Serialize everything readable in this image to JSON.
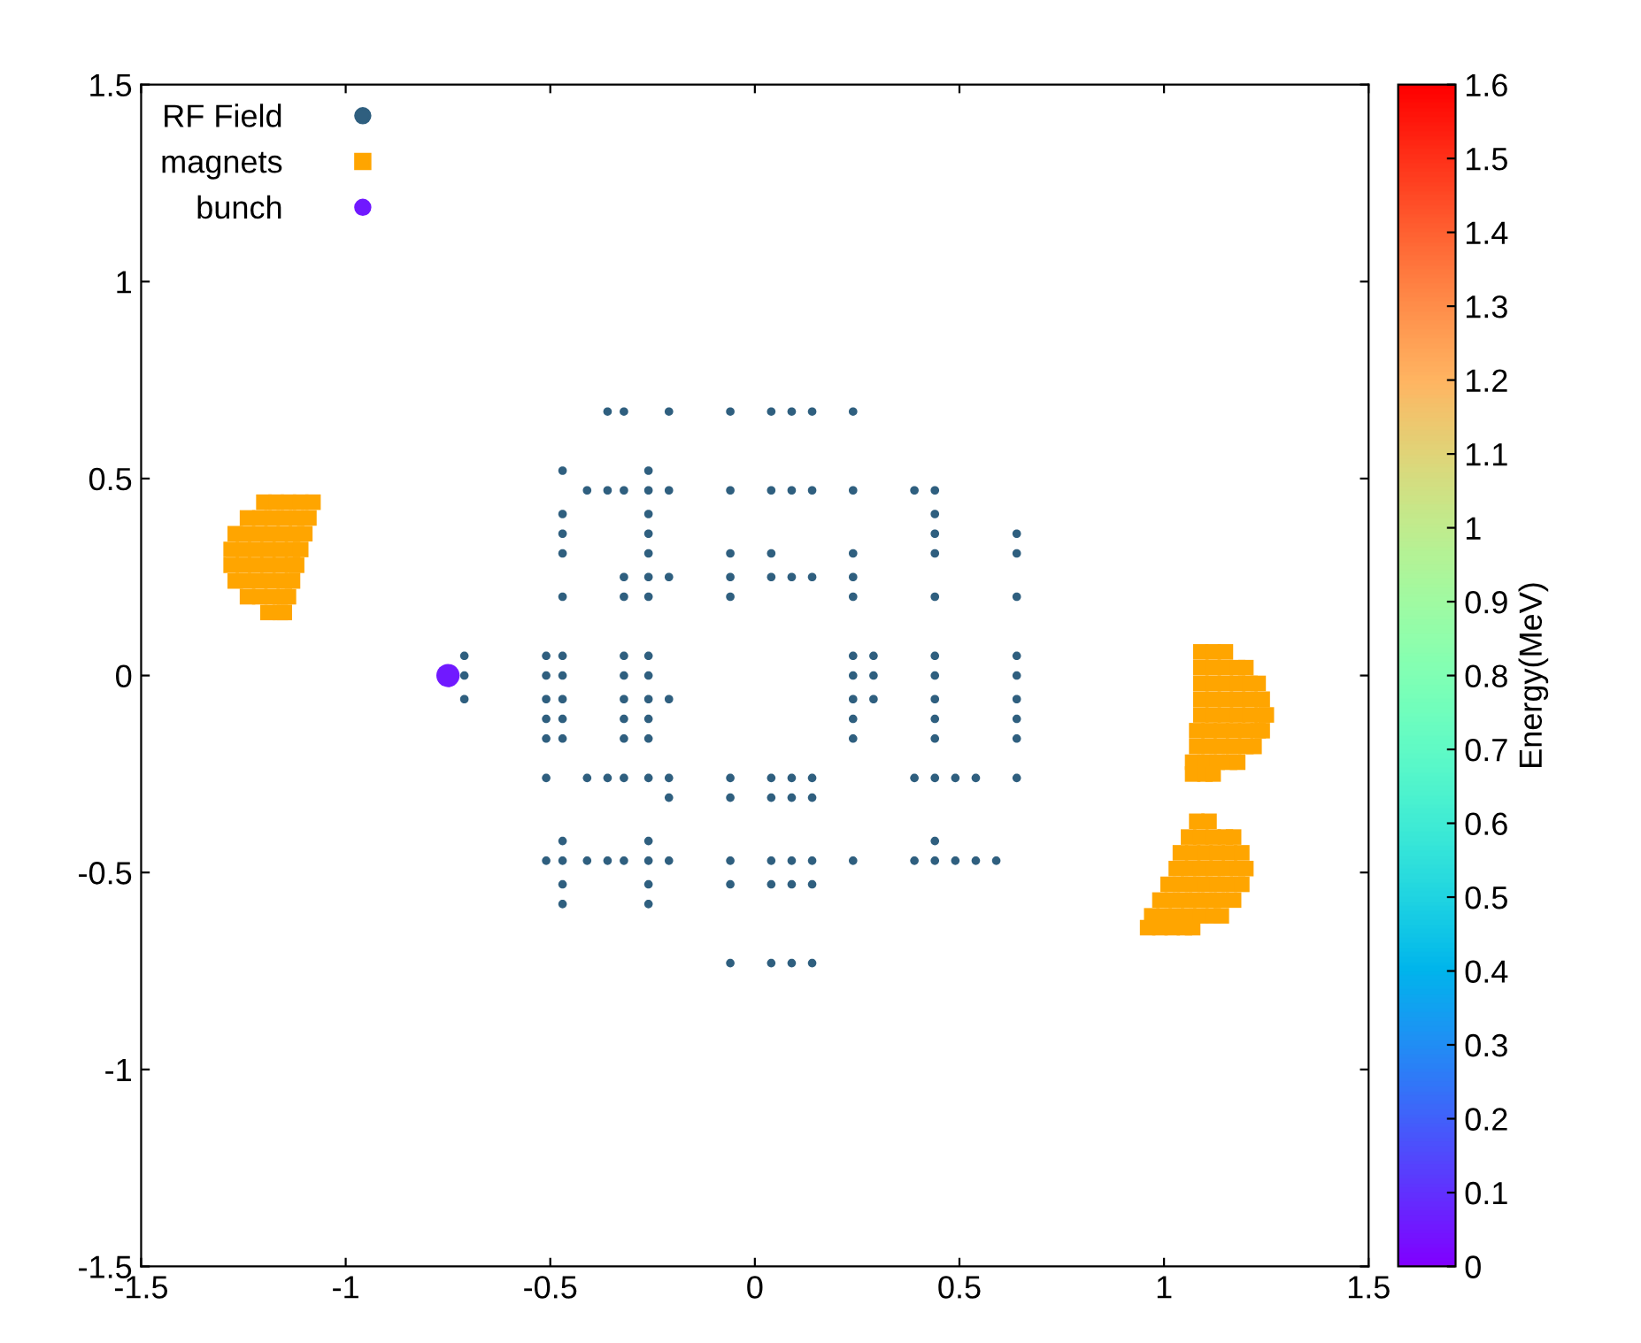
{
  "chart_data": {
    "type": "scatter",
    "xlim": [
      -1.5,
      1.5
    ],
    "ylim": [
      -1.5,
      1.5
    ],
    "xticks": [
      -1.5,
      -1,
      -0.5,
      0,
      0.5,
      1,
      1.5
    ],
    "yticks": [
      -1.5,
      -1,
      -0.5,
      0,
      0.5,
      1,
      1.5
    ],
    "clim": [
      0,
      1.6
    ],
    "cticks": [
      0,
      0.1,
      0.2,
      0.3,
      0.4,
      0.5,
      0.6,
      0.7,
      0.8,
      0.9,
      1,
      1.1,
      1.2,
      1.3,
      1.4,
      1.5,
      1.6
    ],
    "clabel": "Energy(MeV)",
    "legend": "top left",
    "grid": false,
    "series": [
      {
        "name": "RF Field",
        "marker": "circle",
        "color": "#2f5f7f",
        "x": [
          -0.36,
          -0.32,
          -0.21,
          -0.06,
          0.04,
          0.09,
          0.14,
          0.24,
          -0.47,
          -0.26,
          -0.41,
          -0.36,
          -0.32,
          -0.26,
          -0.21,
          -0.06,
          0.04,
          0.09,
          0.14,
          0.24,
          0.39,
          0.44,
          -0.47,
          -0.26,
          0.44,
          -0.47,
          -0.26,
          0.44,
          0.64,
          -0.47,
          -0.26,
          -0.06,
          0.04,
          0.24,
          0.44,
          0.64,
          -0.32,
          -0.26,
          -0.21,
          -0.06,
          0.04,
          0.09,
          0.14,
          0.24,
          -0.47,
          -0.32,
          -0.26,
          -0.06,
          0.24,
          0.44,
          0.64,
          -0.71,
          -0.51,
          -0.47,
          -0.32,
          -0.26,
          0.24,
          0.29,
          0.44,
          0.64,
          -0.71,
          -0.51,
          -0.47,
          -0.32,
          -0.26,
          0.24,
          0.29,
          0.44,
          0.64,
          -0.71,
          -0.51,
          -0.47,
          -0.32,
          -0.26,
          -0.21,
          0.24,
          0.29,
          0.44,
          0.64,
          -0.51,
          -0.47,
          -0.32,
          -0.26,
          0.24,
          0.44,
          0.64,
          -0.51,
          -0.47,
          -0.32,
          -0.26,
          0.24,
          0.44,
          0.64,
          -0.51,
          -0.41,
          -0.36,
          -0.32,
          -0.26,
          -0.21,
          -0.06,
          0.04,
          0.09,
          0.14,
          0.39,
          0.44,
          0.49,
          0.54,
          0.64,
          -0.21,
          -0.06,
          0.04,
          0.09,
          0.14,
          -0.47,
          -0.26,
          0.44,
          -0.51,
          -0.47,
          -0.41,
          -0.36,
          -0.32,
          -0.26,
          -0.21,
          -0.06,
          0.04,
          0.09,
          0.14,
          0.24,
          0.39,
          0.44,
          0.49,
          0.54,
          0.59,
          -0.47,
          -0.26,
          -0.06,
          0.04,
          0.09,
          0.14,
          -0.47,
          -0.26,
          -0.06,
          0.04,
          0.09,
          0.14
        ],
        "values": [
          0.67,
          0.67,
          0.67,
          0.67,
          0.67,
          0.67,
          0.67,
          0.67,
          0.52,
          0.52,
          0.47,
          0.47,
          0.47,
          0.47,
          0.47,
          0.47,
          0.47,
          0.47,
          0.47,
          0.47,
          0.47,
          0.47,
          0.41,
          0.41,
          0.41,
          0.36,
          0.36,
          0.36,
          0.36,
          0.31,
          0.31,
          0.31,
          0.31,
          0.31,
          0.31,
          0.31,
          0.25,
          0.25,
          0.25,
          0.25,
          0.25,
          0.25,
          0.25,
          0.25,
          0.2,
          0.2,
          0.2,
          0.2,
          0.2,
          0.2,
          0.2,
          0.05,
          0.05,
          0.05,
          0.05,
          0.05,
          0.05,
          0.05,
          0.05,
          0.05,
          0,
          0,
          0,
          0,
          0,
          0,
          0,
          0,
          0,
          -0.06,
          -0.06,
          -0.06,
          -0.06,
          -0.06,
          -0.06,
          -0.06,
          -0.06,
          -0.06,
          -0.06,
          -0.11,
          -0.11,
          -0.11,
          -0.11,
          -0.11,
          -0.11,
          -0.11,
          -0.16,
          -0.16,
          -0.16,
          -0.16,
          -0.16,
          -0.16,
          -0.16,
          -0.26,
          -0.26,
          -0.26,
          -0.26,
          -0.26,
          -0.26,
          -0.26,
          -0.26,
          -0.26,
          -0.26,
          -0.26,
          -0.26,
          -0.26,
          -0.26,
          -0.26,
          -0.31,
          -0.31,
          -0.31,
          -0.31,
          -0.31,
          -0.42,
          -0.42,
          -0.42,
          -0.47,
          -0.47,
          -0.47,
          -0.47,
          -0.47,
          -0.47,
          -0.47,
          -0.47,
          -0.47,
          -0.47,
          -0.47,
          -0.47,
          -0.47,
          -0.47,
          -0.47,
          -0.47,
          -0.47,
          -0.53,
          -0.53,
          -0.53,
          -0.53,
          -0.53,
          -0.53,
          -0.58,
          -0.58,
          -0.73,
          -0.73,
          -0.73,
          -0.73
        ]
      },
      {
        "name": "magnets",
        "marker": "square",
        "color": "#ffa500",
        "x": [
          -1.2,
          -1.17,
          -1.14,
          -1.11,
          -1.08,
          -1.24,
          -1.21,
          -1.18,
          -1.15,
          -1.12,
          -1.09,
          -1.27,
          -1.24,
          -1.21,
          -1.18,
          -1.15,
          -1.12,
          -1.1,
          -1.28,
          -1.25,
          -1.22,
          -1.19,
          -1.16,
          -1.13,
          -1.11,
          -1.28,
          -1.25,
          -1.22,
          -1.19,
          -1.16,
          -1.13,
          -1.12,
          -1.27,
          -1.24,
          -1.21,
          -1.18,
          -1.15,
          -1.13,
          -1.24,
          -1.21,
          -1.18,
          -1.15,
          -1.14,
          -1.19,
          -1.16,
          -1.15,
          1.09,
          1.12,
          1.15,
          1.09,
          1.12,
          1.15,
          1.18,
          1.2,
          1.09,
          1.12,
          1.15,
          1.18,
          1.21,
          1.23,
          1.09,
          1.12,
          1.15,
          1.18,
          1.21,
          1.24,
          1.09,
          1.12,
          1.15,
          1.18,
          1.21,
          1.24,
          1.25,
          1.08,
          1.11,
          1.14,
          1.17,
          1.2,
          1.23,
          1.24,
          1.08,
          1.11,
          1.14,
          1.17,
          1.2,
          1.22,
          1.07,
          1.1,
          1.13,
          1.16,
          1.18,
          1.07,
          1.1,
          1.12,
          1.08,
          1.11,
          1.06,
          1.09,
          1.12,
          1.15,
          1.17,
          1.04,
          1.07,
          1.1,
          1.13,
          1.16,
          1.19,
          1.03,
          1.06,
          1.09,
          1.12,
          1.15,
          1.18,
          1.2,
          1.01,
          1.04,
          1.07,
          1.1,
          1.13,
          1.16,
          1.19,
          0.99,
          1.02,
          1.05,
          1.08,
          1.11,
          1.14,
          1.17,
          0.97,
          1.0,
          1.03,
          1.06,
          1.09,
          1.12,
          1.14,
          0.96,
          0.99,
          1.02,
          1.05,
          1.07
        ],
        "values": [
          0.44,
          0.44,
          0.44,
          0.44,
          0.44,
          0.4,
          0.4,
          0.4,
          0.4,
          0.4,
          0.4,
          0.36,
          0.36,
          0.36,
          0.36,
          0.36,
          0.36,
          0.36,
          0.32,
          0.32,
          0.32,
          0.32,
          0.32,
          0.32,
          0.32,
          0.28,
          0.28,
          0.28,
          0.28,
          0.28,
          0.28,
          0.28,
          0.24,
          0.24,
          0.24,
          0.24,
          0.24,
          0.24,
          0.2,
          0.2,
          0.2,
          0.2,
          0.2,
          0.16,
          0.16,
          0.16,
          0.06,
          0.06,
          0.06,
          0.02,
          0.02,
          0.02,
          0.02,
          0.02,
          -0.02,
          -0.02,
          -0.02,
          -0.02,
          -0.02,
          -0.02,
          -0.06,
          -0.06,
          -0.06,
          -0.06,
          -0.06,
          -0.06,
          -0.1,
          -0.1,
          -0.1,
          -0.1,
          -0.1,
          -0.1,
          -0.1,
          -0.14,
          -0.14,
          -0.14,
          -0.14,
          -0.14,
          -0.14,
          -0.14,
          -0.18,
          -0.18,
          -0.18,
          -0.18,
          -0.18,
          -0.18,
          -0.22,
          -0.22,
          -0.22,
          -0.22,
          -0.22,
          -0.25,
          -0.25,
          -0.25,
          -0.37,
          -0.37,
          -0.41,
          -0.41,
          -0.41,
          -0.41,
          -0.41,
          -0.45,
          -0.45,
          -0.45,
          -0.45,
          -0.45,
          -0.45,
          -0.49,
          -0.49,
          -0.49,
          -0.49,
          -0.49,
          -0.49,
          -0.49,
          -0.53,
          -0.53,
          -0.53,
          -0.53,
          -0.53,
          -0.53,
          -0.53,
          -0.57,
          -0.57,
          -0.57,
          -0.57,
          -0.57,
          -0.57,
          -0.57,
          -0.61,
          -0.61,
          -0.61,
          -0.61,
          -0.61,
          -0.61,
          -0.61,
          -0.64,
          -0.64,
          -0.64,
          -0.64,
          -0.64
        ]
      },
      {
        "name": "bunch",
        "marker": "circle",
        "x": [
          -0.75
        ],
        "values": [
          0
        ],
        "cvalues": [
          0.05
        ]
      }
    ]
  }
}
